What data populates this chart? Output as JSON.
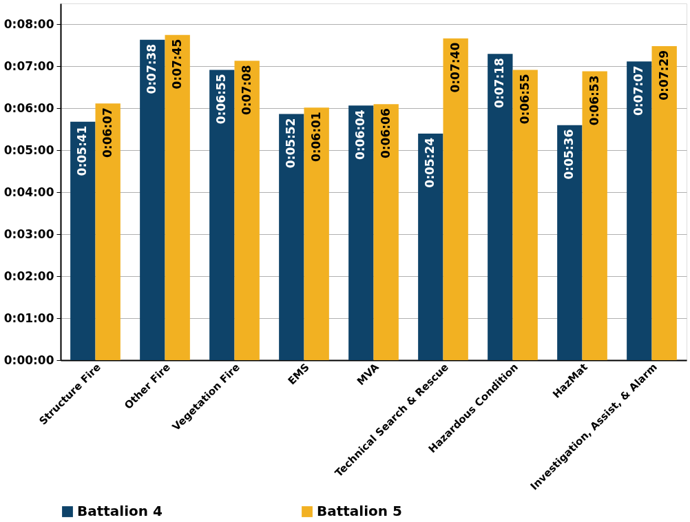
{
  "chart_data": {
    "type": "bar",
    "categories": [
      "Structure Fire",
      "Other Fire",
      "Vegetation Fire",
      "EMS",
      "MVA",
      "Technical Search & Rescue",
      "Hazardous Condition",
      "HazMat",
      "Investigation, Assist, & Alarm"
    ],
    "series": [
      {
        "name": "Battalion 4",
        "color": "#0e4369",
        "values": [
          341,
          458,
          415,
          352,
          364,
          324,
          438,
          336,
          427
        ],
        "value_labels": [
          "0:05:41",
          "0:07:38",
          "0:06:55",
          "0:05:52",
          "0:06:04",
          "0:05:24",
          "0:07:18",
          "0:05:36",
          "0:07:07"
        ]
      },
      {
        "name": "Battalion 5",
        "color": "#f2b122",
        "values": [
          367,
          465,
          428,
          361,
          366,
          460,
          415,
          413,
          449
        ],
        "value_labels": [
          "0:06:07",
          "0:07:45",
          "0:07:08",
          "0:06:01",
          "0:06:06",
          "0:07:40",
          "0:06:55",
          "0:06:53",
          "0:07:29"
        ]
      }
    ],
    "ylim": [
      0,
      510
    ],
    "yticks": [
      {
        "value": 0,
        "label": "0:00:00"
      },
      {
        "value": 60,
        "label": "0:01:00"
      },
      {
        "value": 120,
        "label": "0:02:00"
      },
      {
        "value": 180,
        "label": "0:03:00"
      },
      {
        "value": 240,
        "label": "0:04:00"
      },
      {
        "value": 300,
        "label": "0:05:00"
      },
      {
        "value": 360,
        "label": "0:06:00"
      },
      {
        "value": 420,
        "label": "0:07:00"
      },
      {
        "value": 480,
        "label": "0:08:00"
      }
    ],
    "grid": "y",
    "legend": "bottom"
  }
}
